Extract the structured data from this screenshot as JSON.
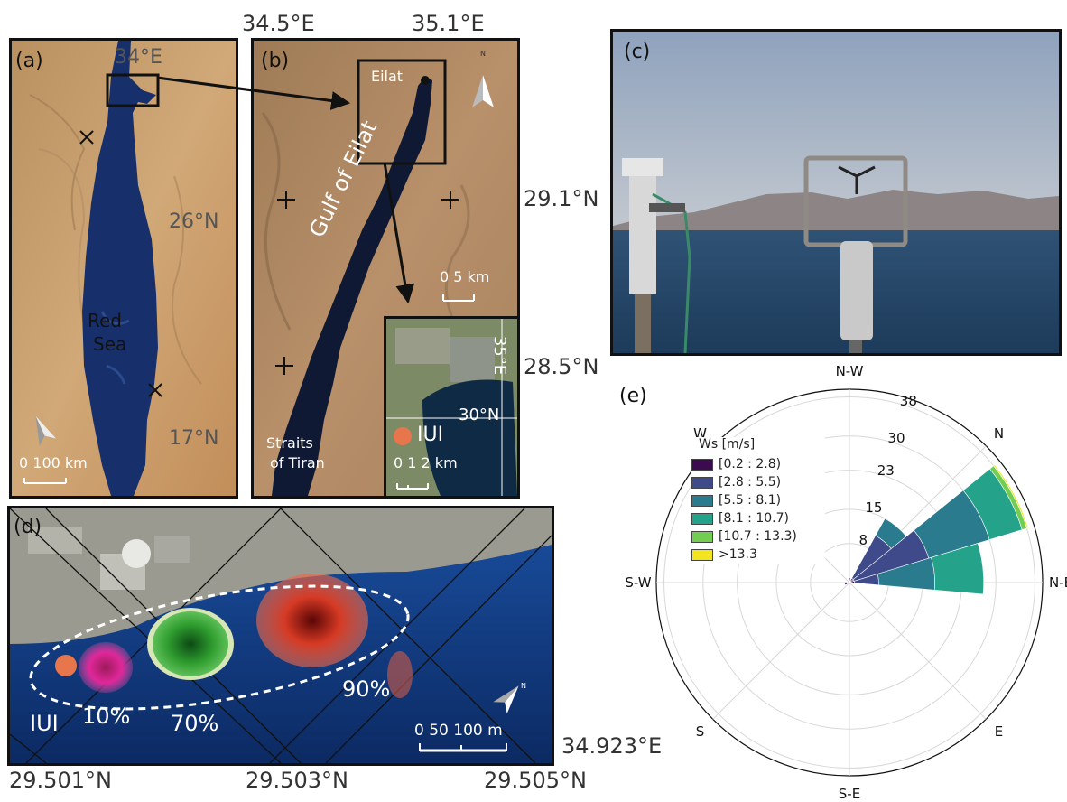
{
  "outer_coords": {
    "lon_345": "34.5°E",
    "lon_351": "35.1°E",
    "lat_291": "29.1°N",
    "lat_285": "28.5°N",
    "lon_34923": "34.923°E",
    "lat_29501": "29.501°N",
    "lat_29503": "29.503°N",
    "lat_29505": "29.505°N"
  },
  "panel_a": {
    "label": "(a)",
    "lon_34": "34°E",
    "lat_26": "26°N",
    "lat_17": "17°N",
    "sea_name_1": "Red",
    "sea_name_2": "Sea",
    "scale": "0   100 km"
  },
  "panel_b": {
    "label": "(b)",
    "eilat": "Eilat",
    "gulf": "Gulf of Eilat",
    "straits_1": "Straits",
    "straits_2": "of Tiran",
    "scale": "0   5 km",
    "north": "N"
  },
  "inset": {
    "lon_35": "35°E",
    "lat_30": "30°N",
    "iui": "IUI",
    "scale": "0 1 2 km"
  },
  "panel_c": {
    "label": "(c)"
  },
  "panel_d": {
    "label": "(d)",
    "iui": "IUI",
    "p10": "10%",
    "p70": "70%",
    "p90": "90%",
    "scale": "0    50  100 m",
    "north": "N"
  },
  "panel_e": {
    "label": "(e)",
    "directions": [
      "N-W",
      "N",
      "N-E",
      "E",
      "S-E",
      "S",
      "S-W",
      "W"
    ],
    "radial_ticks": [
      "8",
      "15",
      "23",
      "30",
      "38"
    ],
    "legend_title": "Ws [m/s]",
    "legend": [
      {
        "label": "[0.2 : 2.8)",
        "color": "#3b0a4f"
      },
      {
        "label": "[2.8 : 5.5)",
        "color": "#3f4a8a"
      },
      {
        "label": "[5.5 : 8.1)",
        "color": "#2a7b8e"
      },
      {
        "label": "[8.1 : 10.7)",
        "color": "#25a28a"
      },
      {
        "label": "[10.7 : 13.3)",
        "color": "#72cd52"
      },
      {
        "label": ">13.3",
        "color": "#f2e51d"
      }
    ]
  },
  "chart_data": {
    "type": "windrose",
    "directions": [
      "N-W",
      "N",
      "N-E",
      "E",
      "S-E",
      "S",
      "S-W",
      "W"
    ],
    "radial_ticks": [
      8,
      15,
      23,
      30,
      38
    ],
    "bins": [
      "[0.2 : 2.8)",
      "[2.8 : 5.5)",
      "[5.5 : 8.1)",
      "[8.1 : 10.7)",
      "[10.7 : 13.3)",
      ">13.3"
    ],
    "petals": [
      {
        "angle_deg_from_NW_cw": 40,
        "cumulative": [
          1,
          11,
          15
        ]
      },
      {
        "angle_deg_from_NW_cw": 62,
        "cumulative": [
          1,
          17,
          30,
          37,
          38,
          38.3
        ]
      },
      {
        "angle_deg_from_NW_cw": 84,
        "cumulative": [
          1,
          6,
          17.5,
          27.5
        ]
      },
      {
        "angle_deg_from_NW_cw": 0,
        "cumulative": [
          1
        ]
      },
      {
        "angle_deg_from_NW_cw": 250,
        "cumulative": [
          1
        ]
      }
    ]
  }
}
